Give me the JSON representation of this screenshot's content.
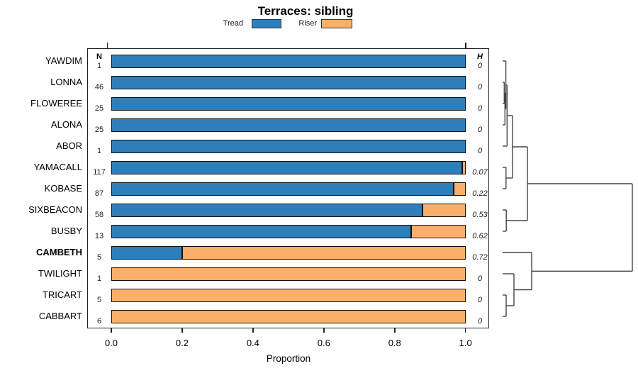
{
  "chart_data": {
    "type": "bar",
    "stacked": true,
    "orientation": "horizontal",
    "title": "Terraces: sibling",
    "xlabel": "Proportion",
    "xlim": [
      0,
      1
    ],
    "xtick_values": [
      0,
      0.2,
      0.4,
      0.6,
      0.8,
      1
    ],
    "xtick_labels": [
      "0.0",
      "0.2",
      "0.4",
      "0.6",
      "0.8",
      "1.0"
    ],
    "legend_position": "top",
    "grid": false,
    "series": [
      {
        "name": "Tread",
        "color": "#2e7eb9"
      },
      {
        "name": "Riser",
        "color": "#fcae6b"
      }
    ],
    "columns": {
      "n_header": "N",
      "h_header": "H"
    },
    "rows": [
      {
        "label": "YAWDIM",
        "n": "1",
        "tread": 1,
        "riser": 0,
        "h": "0",
        "bold": false
      },
      {
        "label": "LONNA",
        "n": "46",
        "tread": 1,
        "riser": 0,
        "h": "0",
        "bold": false
      },
      {
        "label": "FLOWEREE",
        "n": "25",
        "tread": 1,
        "riser": 0,
        "h": "0",
        "bold": false
      },
      {
        "label": "ALONA",
        "n": "25",
        "tread": 1,
        "riser": 0,
        "h": "0",
        "bold": false
      },
      {
        "label": "ABOR",
        "n": "1",
        "tread": 1,
        "riser": 0,
        "h": "0",
        "bold": false
      },
      {
        "label": "YAMACALL",
        "n": "117",
        "tread": 0.99,
        "riser": 0.01,
        "h": "0.07",
        "bold": false
      },
      {
        "label": "KOBASE",
        "n": "87",
        "tread": 0.966,
        "riser": 0.034,
        "h": "0.22",
        "bold": false
      },
      {
        "label": "SIXBEACON",
        "n": "58",
        "tread": 0.879,
        "riser": 0.121,
        "h": "0.53",
        "bold": false
      },
      {
        "label": "BUSBY",
        "n": "13",
        "tread": 0.846,
        "riser": 0.154,
        "h": "0.62",
        "bold": false
      },
      {
        "label": "CAMBETH",
        "n": "5",
        "tread": 0.2,
        "riser": 0.8,
        "h": "0.72",
        "bold": true
      },
      {
        "label": "TWILIGHT",
        "n": "1",
        "tread": 0,
        "riser": 1,
        "h": "0",
        "bold": false
      },
      {
        "label": "TRICART",
        "n": "5",
        "tread": 0,
        "riser": 1,
        "h": "0",
        "bold": false
      },
      {
        "label": "CABBART",
        "n": "6",
        "tread": 0,
        "riser": 1,
        "h": "0",
        "bold": false
      }
    ],
    "dendrogram": {
      "line_color": "#444444",
      "segments": [
        [
          709,
          86,
          713.6,
          86
        ],
        [
          709,
          116,
          711.3,
          116
        ],
        [
          709,
          146,
          711.3,
          146
        ],
        [
          709,
          176,
          712.3,
          176
        ],
        [
          709,
          206,
          715.3,
          206
        ],
        [
          709,
          236,
          713.8,
          236
        ],
        [
          709,
          266,
          713.8,
          266
        ],
        [
          709,
          296,
          714.2,
          296
        ],
        [
          709,
          326,
          714.2,
          326
        ],
        [
          709,
          356,
          750,
          356
        ],
        [
          709,
          386,
          725,
          386
        ],
        [
          709,
          416,
          714,
          416
        ],
        [
          709,
          446,
          714,
          446
        ],
        [
          711.3,
          116,
          711.3,
          146
        ],
        [
          711.3,
          131,
          712.3,
          131
        ],
        [
          712.3,
          131,
          712.3,
          176
        ],
        [
          712.3,
          153.5,
          713.6,
          153.5
        ],
        [
          713.6,
          86,
          713.6,
          153.5
        ],
        [
          713.6,
          119.8,
          715.3,
          119.8
        ],
        [
          715.3,
          119.8,
          715.3,
          206
        ],
        [
          715.3,
          162.9,
          723,
          162.9
        ],
        [
          713.8,
          236,
          713.8,
          266
        ],
        [
          713.8,
          251,
          723,
          251
        ],
        [
          723,
          162.9,
          723,
          251
        ],
        [
          723,
          207,
          744,
          207
        ],
        [
          714.2,
          296,
          714.2,
          326
        ],
        [
          714.2,
          311,
          744,
          311
        ],
        [
          744,
          207,
          744,
          311
        ],
        [
          744,
          259,
          892,
          259
        ],
        [
          714,
          416,
          714,
          446
        ],
        [
          714,
          431,
          725,
          431
        ],
        [
          725,
          386,
          725,
          431
        ],
        [
          725,
          408.5,
          750,
          408.5
        ],
        [
          750,
          356,
          750,
          408.5
        ],
        [
          750,
          382.3,
          892,
          382.3
        ],
        [
          892,
          259,
          892,
          382.3
        ]
      ]
    }
  }
}
